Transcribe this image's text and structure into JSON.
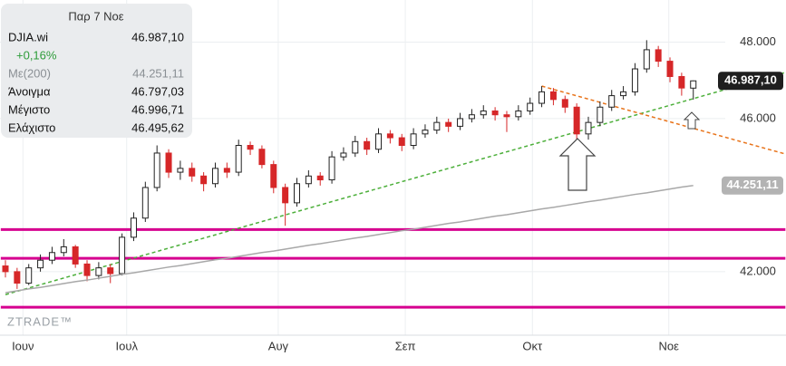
{
  "info": {
    "date": "Παρ 7 Νοε",
    "rows": [
      [
        "DJIA.wi",
        "46.987,10"
      ],
      [
        "+0,16%"
      ],
      [
        "Με(200)",
        "44.251,11"
      ],
      [
        "Άνοιγμα",
        "46.797,03"
      ],
      [
        "Μέγιστο",
        "46.996,71"
      ],
      [
        "Ελάχιστο",
        "46.495,62"
      ]
    ]
  },
  "chart_data": {
    "type": "candlestick",
    "watermark": "ZTRADE™",
    "xlim": [
      -0.4,
      66.9
    ],
    "ylim": [
      40340,
      49100
    ],
    "xticks": [
      {
        "value": 1.5,
        "label": "Ιουν"
      },
      {
        "value": 10.4,
        "label": "Ιουλ"
      },
      {
        "value": 23.4,
        "label": "Αυγ"
      },
      {
        "value": 34.3,
        "label": "Σεπ"
      },
      {
        "value": 45.2,
        "label": "Οκτ"
      },
      {
        "value": 56.9,
        "label": "Νοε"
      }
    ],
    "yticks": [
      {
        "value": 42000,
        "label": "42.000"
      },
      {
        "value": 46000,
        "label": "46.000"
      },
      {
        "value": 48000,
        "label": "48.000"
      }
    ],
    "grid": true,
    "up_color": "#ffffff",
    "down_color": "#d62728",
    "series": [
      {
        "name": "DJIA.wi",
        "color": "#222222",
        "ohlc": [
          [
            42150,
            42300,
            41850,
            42000
          ],
          [
            42000,
            42100,
            41550,
            41700
          ],
          [
            41700,
            42200,
            41650,
            42100
          ],
          [
            42100,
            42450,
            42000,
            42300
          ],
          [
            42300,
            42650,
            42200,
            42500
          ],
          [
            42500,
            42850,
            42400,
            42650
          ],
          [
            42650,
            42700,
            42100,
            42200
          ],
          [
            42200,
            42300,
            41750,
            41900
          ],
          [
            41900,
            42250,
            41800,
            42100
          ],
          [
            42100,
            42200,
            41700,
            41950
          ],
          [
            41950,
            43000,
            41900,
            42900
          ],
          [
            42900,
            43550,
            42800,
            43400
          ],
          [
            43400,
            44350,
            43300,
            44200
          ],
          [
            44200,
            45300,
            44100,
            45100
          ],
          [
            45100,
            45200,
            44450,
            44600
          ],
          [
            44600,
            44900,
            44400,
            44700
          ],
          [
            44700,
            44850,
            44350,
            44500
          ],
          [
            44500,
            44600,
            44100,
            44300
          ],
          [
            44300,
            44850,
            44200,
            44700
          ],
          [
            44700,
            44850,
            44450,
            44600
          ],
          [
            44600,
            45450,
            44500,
            45300
          ],
          [
            45300,
            45400,
            45050,
            45200
          ],
          [
            45200,
            45300,
            44700,
            44800
          ],
          [
            44800,
            44900,
            44050,
            44200
          ],
          [
            44200,
            44300,
            43200,
            43800
          ],
          [
            43800,
            44450,
            43700,
            44300
          ],
          [
            44300,
            44650,
            44200,
            44500
          ],
          [
            44500,
            44600,
            44250,
            44400
          ],
          [
            44400,
            45150,
            44300,
            45000
          ],
          [
            45000,
            45250,
            44900,
            45100
          ],
          [
            45100,
            45550,
            45000,
            45400
          ],
          [
            45400,
            45500,
            45050,
            45200
          ],
          [
            45200,
            45750,
            45100,
            45600
          ],
          [
            45600,
            45700,
            45350,
            45500
          ],
          [
            45500,
            45600,
            45150,
            45300
          ],
          [
            45300,
            45750,
            45200,
            45600
          ],
          [
            45600,
            45850,
            45500,
            45700
          ],
          [
            45700,
            46050,
            45600,
            45900
          ],
          [
            45900,
            46000,
            45650,
            45800
          ],
          [
            45800,
            46150,
            45700,
            46000
          ],
          [
            46000,
            46250,
            45900,
            46100
          ],
          [
            46100,
            46350,
            46000,
            46200
          ],
          [
            46200,
            46300,
            45950,
            46100
          ],
          [
            46100,
            46200,
            45650,
            46050
          ],
          [
            46050,
            46350,
            45950,
            46200
          ],
          [
            46200,
            46550,
            46100,
            46400
          ],
          [
            46400,
            46850,
            46300,
            46700
          ],
          [
            46700,
            46800,
            46350,
            46500
          ],
          [
            46500,
            46600,
            46150,
            46300
          ],
          [
            46300,
            46400,
            45300,
            45600
          ],
          [
            45600,
            46050,
            45450,
            45900
          ],
          [
            45900,
            46450,
            45800,
            46300
          ],
          [
            46300,
            46750,
            46200,
            46600
          ],
          [
            46600,
            46850,
            46500,
            46700
          ],
          [
            46700,
            47450,
            46600,
            47300
          ],
          [
            47300,
            48050,
            47200,
            47800
          ],
          [
            47800,
            47900,
            47350,
            47500
          ],
          [
            47500,
            47600,
            46950,
            47100
          ],
          [
            47100,
            47200,
            46600,
            46800
          ],
          [
            46797.03,
            46996.71,
            46495.62,
            46987.1
          ]
        ]
      },
      {
        "name": "Με(200)",
        "color": "#a8a8a8",
        "values": [
          41450,
          41500,
          41550,
          41590,
          41640,
          41690,
          41740,
          41780,
          41830,
          41880,
          41930,
          41970,
          42020,
          42070,
          42120,
          42160,
          42210,
          42260,
          42310,
          42350,
          42400,
          42450,
          42500,
          42540,
          42590,
          42640,
          42690,
          42730,
          42780,
          42830,
          42880,
          42920,
          42970,
          43020,
          43070,
          43110,
          43160,
          43210,
          43260,
          43300,
          43350,
          43400,
          43450,
          43490,
          43540,
          43590,
          43640,
          43680,
          43730,
          43780,
          43830,
          43870,
          43920,
          43970,
          44020,
          44060,
          44110,
          44160,
          44210,
          44251
        ]
      }
    ],
    "hlines": [
      {
        "value": 43100,
        "color": "#d6008f"
      },
      {
        "value": 42350,
        "color": "#d6008f"
      },
      {
        "value": 41070,
        "color": "#d6008f"
      }
    ],
    "trendlines": [
      {
        "color": "#4caf3a",
        "dashed": true,
        "x": [
          0,
          66.9
        ],
        "values": [
          41400,
          47208
        ]
      },
      {
        "color": "#e8731a",
        "dashed": true,
        "x": [
          46,
          66.9
        ],
        "values": [
          46850,
          45075
        ]
      }
    ],
    "price_label": "46.987,10",
    "ma_label": "44.251,11"
  }
}
